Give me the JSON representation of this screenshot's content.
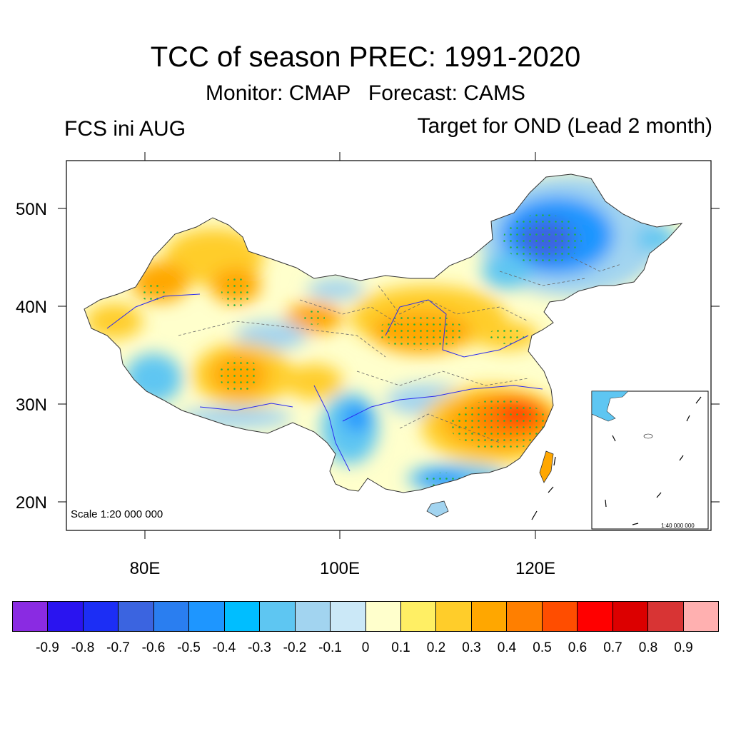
{
  "title": "TCC of season PREC: 1991-2020",
  "subtitle": "Monitor: CMAP   Forecast: CAMS",
  "left_string": "FCS ini AUG",
  "right_string": "Target for OND (Lead 2 month)",
  "lat_labels": [
    "50N",
    "40N",
    "30N",
    "20N"
  ],
  "lon_labels": [
    "80E",
    "100E",
    "120E"
  ],
  "map_extent": {
    "lon": [
      72,
      138
    ],
    "lat": [
      16,
      55
    ]
  },
  "scale_text": "Scale 1:20 000 000",
  "inset_scale_text": "1:40 000 000",
  "colorbar": {
    "labels": [
      "-0.9",
      "-0.8",
      "-0.7",
      "-0.6",
      "-0.5",
      "-0.4",
      "-0.3",
      "-0.2",
      "-0.1",
      "0",
      "0.1",
      "0.2",
      "0.3",
      "0.4",
      "0.5",
      "0.6",
      "0.7",
      "0.8",
      "0.9"
    ],
    "colors": [
      "#8a2be2",
      "#2a14f0",
      "#1c2ef5",
      "#3b64e0",
      "#2a7ef0",
      "#1e96ff",
      "#00beff",
      "#5ec6f2",
      "#a2d4f0",
      "#cbe8f7",
      "#ffffcc",
      "#ffef64",
      "#ffcd2a",
      "#ffa700",
      "#ff7f00",
      "#ff4d00",
      "#ff0000",
      "#dc0000",
      "#d83434",
      "#ffb0b0"
    ]
  },
  "stipple_color": "#20b040"
}
